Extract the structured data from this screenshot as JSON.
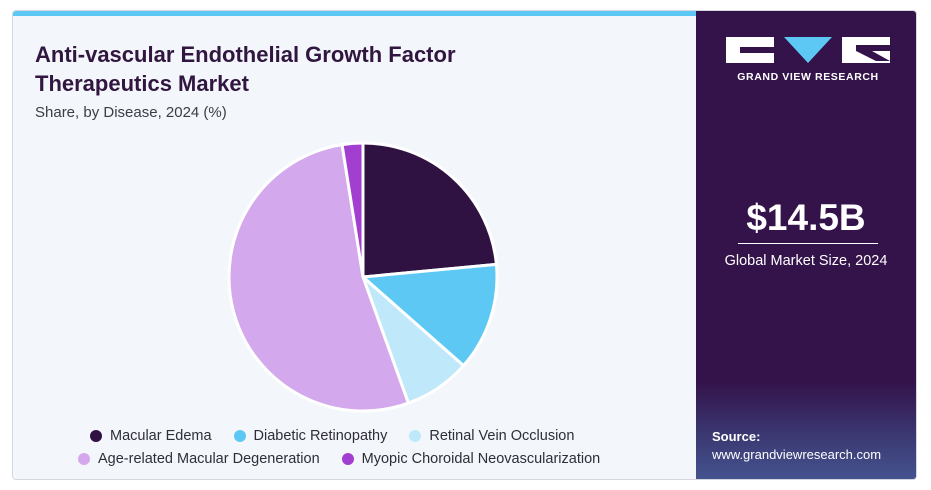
{
  "header": {
    "title": "Anti-vascular Endothelial Growth Factor Therapeutics Market",
    "subtitle": "Share, by Disease, 2024 (%)"
  },
  "chart_data": {
    "type": "pie",
    "title": "Anti-vascular Endothelial Growth Factor Therapeutics Market",
    "subtitle": "Share, by Disease, 2024 (%)",
    "categories": [
      "Macular Edema",
      "Diabetic Retinopathy",
      "Retinal Vein Occlusion",
      "Age-related Macular Degeneration",
      "Myopic Choroidal Neovascularization"
    ],
    "values": [
      23.5,
      13.0,
      8.0,
      53.0,
      2.5
    ],
    "colors": [
      "#2f1142",
      "#5ec8f5",
      "#bfe8fa",
      "#d4a8ec",
      "#a23fd0"
    ],
    "start_angle_deg": 0,
    "direction": "clockwise",
    "legend_position": "bottom"
  },
  "sidebar": {
    "brand": "GRAND VIEW RESEARCH",
    "market_size": "$14.5B",
    "market_caption": "Global Market Size, 2024",
    "source_label": "Source:",
    "source_url": "www.grandviewresearch.com"
  }
}
